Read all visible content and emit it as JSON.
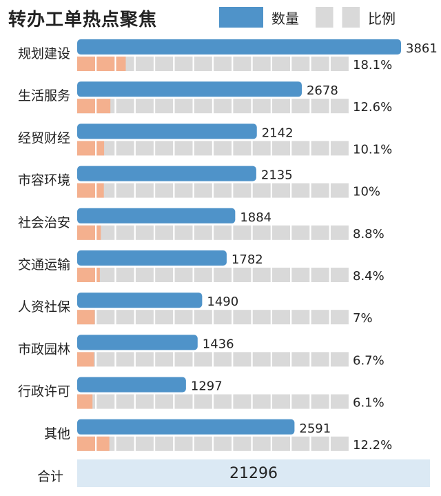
{
  "title": "转办工单热点聚焦",
  "legend": {
    "count_label": "数量",
    "ratio_label": "比例"
  },
  "colors": {
    "count_bar": "#4f93c9",
    "ratio_fill": "#f4b08e",
    "ratio_empty": "#d9d9d9",
    "total_bg": "#dbe9f4"
  },
  "total": {
    "label": "合计",
    "value": "21296"
  },
  "chart_data": {
    "type": "bar",
    "title": "转办工单热点聚焦",
    "categories": [
      "规划建设",
      "生活服务",
      "经贸财经",
      "市容环境",
      "社会治安",
      "交通运输",
      "人资社保",
      "市政园林",
      "行政许可",
      "其他"
    ],
    "series": [
      {
        "name": "数量",
        "values": [
          3861,
          2678,
          2142,
          2135,
          1884,
          1782,
          1490,
          1436,
          1297,
          2591
        ]
      },
      {
        "name": "比例",
        "values": [
          18.1,
          12.6,
          10.1,
          10.0,
          8.8,
          8.4,
          7.0,
          6.7,
          6.1,
          12.2
        ],
        "labels": [
          "18.1%",
          "12.6%",
          "10.1%",
          "10%",
          "8.8%",
          "8.4%",
          "7%",
          "6.7%",
          "6.1%",
          "12.2%"
        ]
      }
    ],
    "count_range": [
      0,
      3861
    ],
    "ratio_range": [
      0,
      100
    ],
    "ratio_segments": 14,
    "legend_position": "top-right"
  }
}
